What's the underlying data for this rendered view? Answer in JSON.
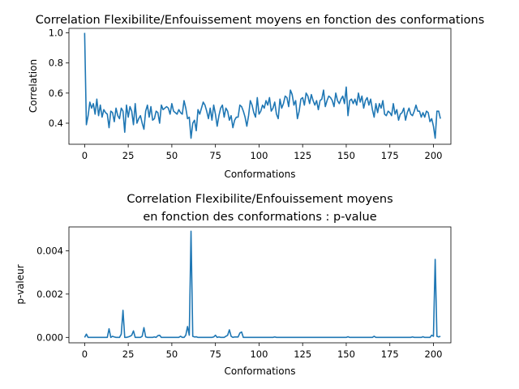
{
  "chart_data": [
    {
      "type": "line",
      "title": "Correlation Flexibilite/Enfouissement moyens en fonction des conformations",
      "title_lines": [
        "Correlation Flexibilite/Enfouissement moyens en fonction des conformations"
      ],
      "xlabel": "Conformations",
      "ylabel": "Correlation",
      "xlim": [
        -9,
        210
      ],
      "ylim": [
        0.26,
        1.03
      ],
      "xticks": [
        0,
        25,
        50,
        75,
        100,
        125,
        150,
        175,
        200
      ],
      "xtick_labels": [
        "0",
        "25",
        "50",
        "75",
        "100",
        "125",
        "150",
        "175",
        "200"
      ],
      "yticks": [
        0.4,
        0.6,
        0.8,
        1.0
      ],
      "ytick_labels": [
        "0.4",
        "0.6",
        "0.8",
        "1.0"
      ],
      "grid": false,
      "color": "#1f77b4",
      "x_start": 0,
      "x_step": 1,
      "y": [
        1.0,
        0.39,
        0.45,
        0.54,
        0.5,
        0.53,
        0.46,
        0.56,
        0.45,
        0.52,
        0.44,
        0.49,
        0.47,
        0.46,
        0.37,
        0.48,
        0.47,
        0.41,
        0.5,
        0.45,
        0.43,
        0.5,
        0.48,
        0.34,
        0.52,
        0.44,
        0.51,
        0.48,
        0.39,
        0.53,
        0.4,
        0.43,
        0.45,
        0.4,
        0.36,
        0.48,
        0.52,
        0.44,
        0.51,
        0.42,
        0.43,
        0.48,
        0.47,
        0.4,
        0.52,
        0.49,
        0.5,
        0.51,
        0.5,
        0.46,
        0.53,
        0.48,
        0.47,
        0.46,
        0.49,
        0.47,
        0.46,
        0.55,
        0.5,
        0.43,
        0.44,
        0.3,
        0.4,
        0.42,
        0.35,
        0.49,
        0.46,
        0.5,
        0.54,
        0.52,
        0.48,
        0.43,
        0.5,
        0.42,
        0.52,
        0.46,
        0.38,
        0.45,
        0.5,
        0.52,
        0.44,
        0.5,
        0.48,
        0.42,
        0.45,
        0.37,
        0.42,
        0.44,
        0.44,
        0.52,
        0.51,
        0.48,
        0.44,
        0.38,
        0.45,
        0.55,
        0.52,
        0.47,
        0.44,
        0.57,
        0.46,
        0.48,
        0.52,
        0.5,
        0.55,
        0.52,
        0.57,
        0.48,
        0.5,
        0.54,
        0.46,
        0.43,
        0.56,
        0.5,
        0.53,
        0.58,
        0.57,
        0.51,
        0.62,
        0.59,
        0.52,
        0.55,
        0.43,
        0.48,
        0.56,
        0.57,
        0.52,
        0.6,
        0.58,
        0.53,
        0.59,
        0.55,
        0.52,
        0.55,
        0.49,
        0.55,
        0.56,
        0.62,
        0.51,
        0.55,
        0.58,
        0.57,
        0.55,
        0.51,
        0.6,
        0.55,
        0.53,
        0.56,
        0.58,
        0.53,
        0.64,
        0.45,
        0.55,
        0.56,
        0.53,
        0.56,
        0.52,
        0.6,
        0.54,
        0.58,
        0.5,
        0.55,
        0.57,
        0.52,
        0.56,
        0.49,
        0.44,
        0.53,
        0.47,
        0.53,
        0.5,
        0.55,
        0.46,
        0.45,
        0.48,
        0.47,
        0.45,
        0.53,
        0.46,
        0.49,
        0.42,
        0.46,
        0.47,
        0.5,
        0.42,
        0.47,
        0.5,
        0.46,
        0.45,
        0.48,
        0.52,
        0.48,
        0.48,
        0.44,
        0.47,
        0.44,
        0.48,
        0.47,
        0.41,
        0.43,
        0.38,
        0.3,
        0.48,
        0.48,
        0.43
      ]
    },
    {
      "type": "line",
      "title": "Correlation Flexibilite/Enfouissement moyens\n en fonction des conformations : p-value",
      "title_lines": [
        "Correlation Flexibilite/Enfouissement moyens",
        "en fonction des conformations : p-value"
      ],
      "xlabel": "Conformations",
      "ylabel": "p-valeur",
      "xlim": [
        -9,
        210
      ],
      "ylim": [
        -0.00025,
        0.0051
      ],
      "xticks": [
        0,
        25,
        50,
        75,
        100,
        125,
        150,
        175,
        200
      ],
      "xtick_labels": [
        "0",
        "25",
        "50",
        "75",
        "100",
        "125",
        "150",
        "175",
        "200"
      ],
      "yticks": [
        0.0,
        0.002,
        0.004
      ],
      "ytick_labels": [
        "0.000",
        "0.002",
        "0.004"
      ],
      "grid": false,
      "color": "#1f77b4",
      "x_start": 0,
      "x_step": 1,
      "y": [
        0,
        0.00015,
        0,
        0,
        0,
        0,
        0,
        0,
        0,
        0,
        0,
        0,
        0,
        0,
        0.0004,
        0,
        5e-05,
        2e-05,
        0,
        0,
        0,
        0.00015,
        0.00125,
        0,
        0,
        2e-05,
        5e-05,
        0.0001,
        0.0003,
        0,
        0,
        0,
        0,
        5e-05,
        0.00045,
        2e-05,
        0,
        0,
        0,
        0,
        2e-05,
        0,
        8e-05,
        0.0001,
        0,
        0,
        0,
        0,
        0,
        0,
        0,
        0,
        0,
        0,
        0,
        5e-05,
        0,
        0,
        0.0001,
        0.0005,
        0.0001,
        0.0049,
        5e-05,
        2e-05,
        3e-05,
        0,
        0,
        0,
        0,
        0,
        0,
        0,
        0,
        0,
        2e-05,
        0.0001,
        0,
        2e-05,
        0,
        0,
        0,
        5e-05,
        0.0001,
        0.00035,
        5e-05,
        0,
        2e-05,
        2e-05,
        2e-05,
        0.0002,
        0.00025,
        0,
        0,
        0,
        0,
        0,
        0,
        0,
        0,
        0,
        0,
        0,
        0,
        0,
        0,
        0,
        0,
        0,
        0,
        2e-05,
        0,
        0,
        0,
        0,
        0,
        0,
        0,
        0,
        0,
        0,
        0,
        0,
        0,
        0,
        0,
        0,
        0,
        0,
        0,
        0,
        0,
        0,
        0,
        0,
        0,
        0,
        0,
        0,
        0,
        0,
        0,
        0,
        0,
        0,
        0,
        0,
        0,
        0,
        0,
        0,
        0,
        3e-05,
        0,
        0,
        0,
        0,
        0,
        0,
        0,
        0,
        0,
        0,
        0,
        0,
        0,
        0,
        5e-05,
        0,
        0,
        0,
        0,
        0,
        0,
        0,
        0,
        0,
        0,
        0,
        0,
        0,
        0,
        0,
        0,
        0,
        0,
        0,
        0,
        0,
        2e-05,
        0,
        0,
        0,
        0,
        0,
        3e-05,
        0,
        0,
        0,
        0,
        0.0001,
        5e-05,
        0.0036,
        5e-05,
        2e-05,
        5e-05
      ]
    }
  ]
}
